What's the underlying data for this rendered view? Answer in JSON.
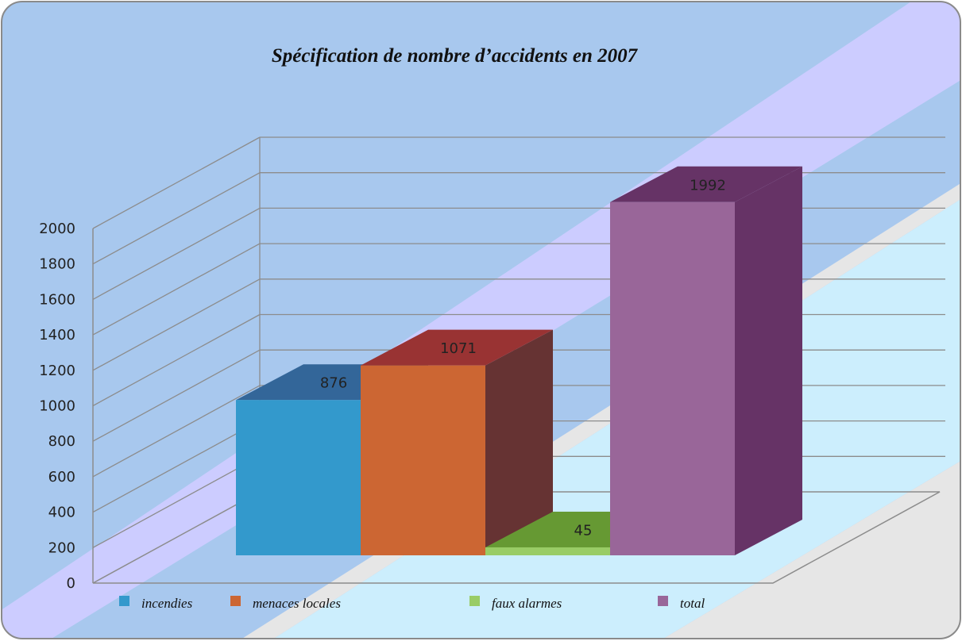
{
  "chart_data": {
    "type": "bar",
    "title": "Spécification de nombre d’accidents en 2007",
    "categories": [
      "incendies",
      "menaces locales",
      "faux alarmes",
      "total"
    ],
    "values": [
      876,
      1071,
      45,
      1992
    ],
    "data_labels": [
      "876",
      "1071",
      "45",
      "1992"
    ],
    "y_ticks": [
      "0",
      "200",
      "400",
      "600",
      "800",
      "1000",
      "1200",
      "1400",
      "1600",
      "1800",
      "2000"
    ],
    "ylim": [
      0,
      2000
    ],
    "grid": true,
    "three_d": true,
    "legend_position": "bottom",
    "legend": [
      {
        "label": "incendies",
        "color": "#3399cc"
      },
      {
        "label": "menaces locales",
        "color": "#cc6633"
      },
      {
        "label": "faux alarmes",
        "color": "#99cc66"
      },
      {
        "label": "total",
        "color": "#996699"
      }
    ],
    "colors": {
      "front": [
        "#3399cc",
        "#cc6633",
        "#99cc66",
        "#996699"
      ],
      "top": [
        "#336699",
        "#993333",
        "#669933",
        "#663366"
      ],
      "side": [
        "#2b5f8a",
        "#663333",
        "#4d7a2a",
        "#663366"
      ],
      "background_blue": "#a8c8ee",
      "band_lavender": "#ccccff",
      "band_lightblue": "#cceefd",
      "band_gray": "#e6e6e6"
    }
  }
}
